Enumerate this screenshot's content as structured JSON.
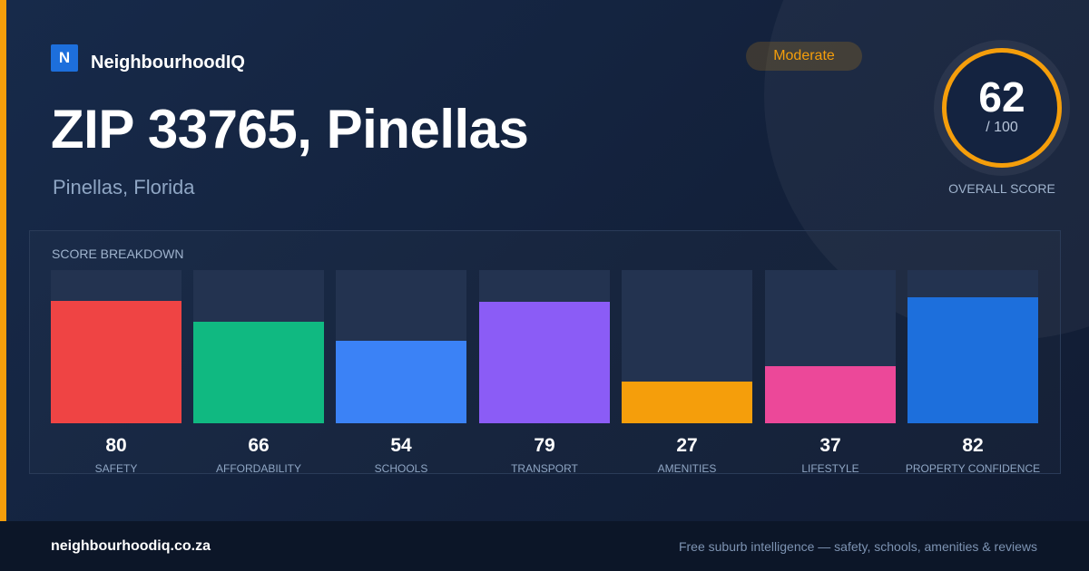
{
  "brand": {
    "logo_letter": "N",
    "name": "NeighbourhoodIQ",
    "logo_color": "#1d6fdc"
  },
  "location": {
    "title": "ZIP 33765, Pinellas",
    "subtitle": "Pinellas, Florida"
  },
  "rating_badge": {
    "label": "Moderate",
    "color": "#f59e0b"
  },
  "overall": {
    "score": "62",
    "max": "/ 100",
    "label": "OVERALL SCORE",
    "ring_color": "#f59e0b"
  },
  "breakdown": {
    "title": "SCORE BREAKDOWN",
    "items": [
      {
        "label": "SAFETY",
        "value": "80",
        "color": "#ef4444"
      },
      {
        "label": "AFFORDABILITY",
        "value": "66",
        "color": "#10b981"
      },
      {
        "label": "SCHOOLS",
        "value": "54",
        "color": "#3b82f6"
      },
      {
        "label": "TRANSPORT",
        "value": "79",
        "color": "#8b5cf6"
      },
      {
        "label": "AMENITIES",
        "value": "27",
        "color": "#f59e0b"
      },
      {
        "label": "LIFESTYLE",
        "value": "37",
        "color": "#ec4899"
      },
      {
        "label": "PROPERTY CONFIDENCE",
        "value": "82",
        "color": "#1d6fdc"
      }
    ]
  },
  "footer": {
    "url": "neighbourhoodiq.co.za",
    "tagline": "Free suburb intelligence — safety, schools, amenities & reviews"
  }
}
